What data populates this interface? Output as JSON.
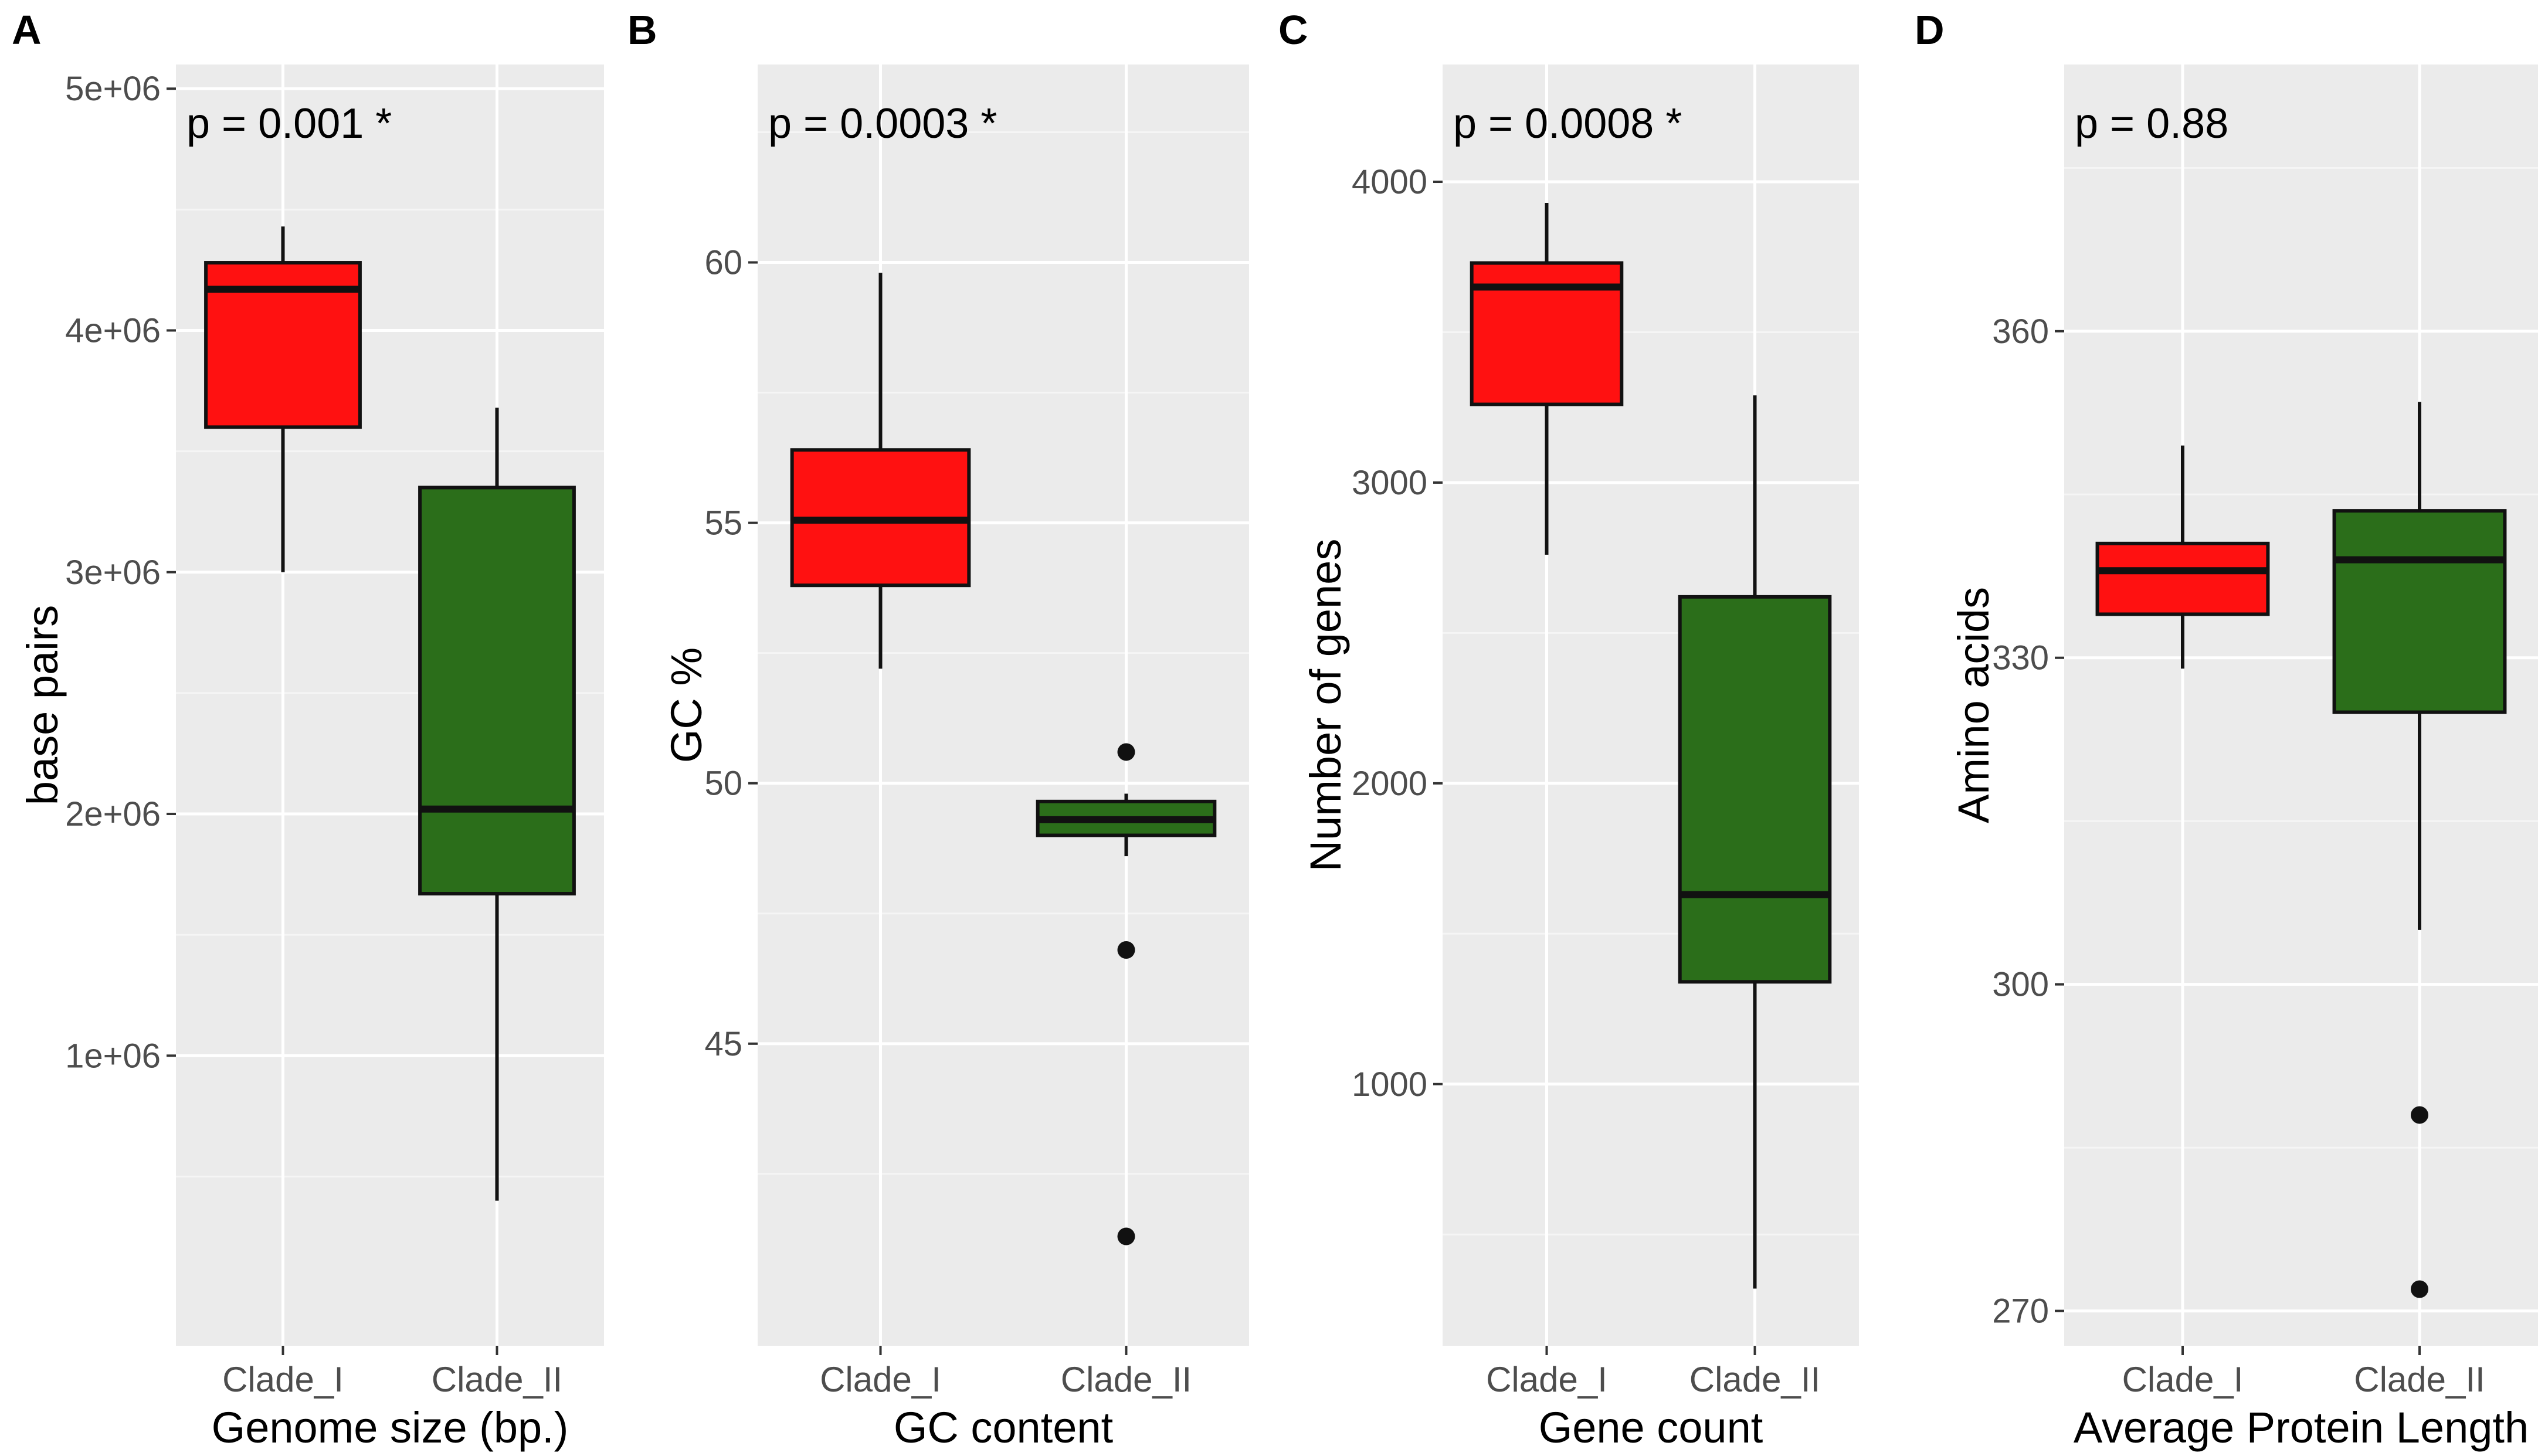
{
  "figure": {
    "colors": {
      "panel_bg": "#ebebeb",
      "grid_major": "#ffffff",
      "grid_minor": "#f5f5f5",
      "clade_I_fill": "#ff1111",
      "clade_II_fill": "#2b6e1a",
      "box_stroke": "#111111",
      "tick_text": "#4d4d4d",
      "label_text": "#000000"
    }
  },
  "chart_data": [
    {
      "panel_label": "A",
      "type": "boxplot",
      "title": "",
      "xlabel": "Genome size (bp.)",
      "ylabel": "base pairs",
      "annotation": "p = 0.001 *",
      "categories": [
        "Clade_I",
        "Clade_II"
      ],
      "ylim": [
        -200000,
        5100000
      ],
      "yticks": [
        1000000,
        2000000,
        3000000,
        4000000,
        5000000
      ],
      "ytick_labels": [
        "1e+06",
        "2e+06",
        "3e+06",
        "4e+06",
        "5e+06"
      ],
      "boxes": [
        {
          "category": "Clade_I",
          "whisker_low": 3000000,
          "q1": 3600000,
          "median": 4170000,
          "q3": 4280000,
          "whisker_high": 4430000,
          "outliers": []
        },
        {
          "category": "Clade_II",
          "whisker_low": 400000,
          "q1": 1670000,
          "median": 2020000,
          "q3": 3350000,
          "whisker_high": 3680000,
          "outliers": []
        }
      ]
    },
    {
      "panel_label": "B",
      "type": "boxplot",
      "title": "",
      "xlabel": "GC content",
      "ylabel": "GC %",
      "annotation": "p = 0.0003 *",
      "categories": [
        "Clade_I",
        "Clade_II"
      ],
      "ylim": [
        39.2,
        63.8
      ],
      "yticks": [
        45,
        50,
        55,
        60
      ],
      "ytick_labels": [
        "45",
        "50",
        "55",
        "60"
      ],
      "boxes": [
        {
          "category": "Clade_I",
          "whisker_low": 52.2,
          "q1": 53.8,
          "median": 55.05,
          "q3": 56.4,
          "whisker_high": 59.8,
          "outliers": []
        },
        {
          "category": "Clade_II",
          "whisker_low": 48.6,
          "q1": 49.0,
          "median": 49.3,
          "q3": 49.65,
          "whisker_high": 49.8,
          "outliers": [
            50.6,
            46.8,
            41.3
          ]
        }
      ]
    },
    {
      "panel_label": "C",
      "type": "boxplot",
      "title": "",
      "xlabel": "Gene count",
      "ylabel": "Number of genes",
      "annotation": "p = 0.0008 *",
      "categories": [
        "Clade_I",
        "Clade_II"
      ],
      "ylim": [
        130,
        4390
      ],
      "yticks": [
        1000,
        2000,
        3000,
        4000
      ],
      "ytick_labels": [
        "1000",
        "2000",
        "3000",
        "4000"
      ],
      "boxes": [
        {
          "category": "Clade_I",
          "whisker_low": 2760,
          "q1": 3260,
          "median": 3650,
          "q3": 3730,
          "whisker_high": 3930,
          "outliers": []
        },
        {
          "category": "Clade_II",
          "whisker_low": 320,
          "q1": 1340,
          "median": 1630,
          "q3": 2620,
          "whisker_high": 3290,
          "outliers": []
        }
      ]
    },
    {
      "panel_label": "D",
      "type": "boxplot",
      "title": "",
      "xlabel": "Average Protein Length",
      "ylabel": "Amino acids",
      "annotation": "p = 0.88",
      "categories": [
        "Clade_I",
        "Clade_II"
      ],
      "ylim": [
        266.8,
        384.5
      ],
      "yticks": [
        270,
        300,
        330,
        360
      ],
      "ytick_labels": [
        "270",
        "300",
        "330",
        "360"
      ],
      "boxes": [
        {
          "category": "Clade_I",
          "whisker_low": 329,
          "q1": 334,
          "median": 338,
          "q3": 340.5,
          "whisker_high": 349.5,
          "outliers": []
        },
        {
          "category": "Clade_II",
          "whisker_low": 305,
          "q1": 325,
          "median": 339,
          "q3": 343.5,
          "whisker_high": 353.5,
          "outliers": [
            288,
            272
          ]
        }
      ]
    }
  ]
}
